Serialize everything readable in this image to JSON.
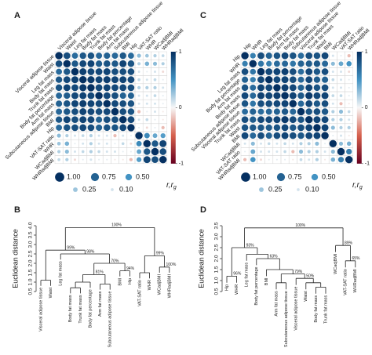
{
  "chart_data": [
    {
      "type": "corrplot",
      "panel": "A",
      "labels": [
        "Visceral adipose tissue",
        "Waist",
        "Leg fat mass",
        "Body fat mass",
        "Trunk fat mass",
        "Body fat percentage",
        "Arm fat mass",
        "Subcutaneous adipose tissue",
        "BMI",
        "Hip",
        "VAT-SAT ratio",
        "WHR",
        "WCadjBMI",
        "WHRadjBMI"
      ],
      "label_colors": [
        "#1a1a1a",
        "#1a1a1a",
        "#1a1a1a",
        "#1a1a1a",
        "#1a1a1a",
        "#1a1a1a",
        "#1a1a1a",
        "#1a1a1a",
        "#1a1a1a",
        "#1a1a1a",
        "#3a9a3a",
        "#3a9a3a",
        "#3a9a3a",
        "#3a9a3a"
      ],
      "matrix": [
        [
          1,
          0.85,
          0.7,
          0.8,
          0.82,
          0.72,
          0.75,
          0.72,
          0.8,
          0.7,
          0.3,
          0.25,
          0.2,
          0.15
        ],
        [
          0.85,
          1,
          0.8,
          0.88,
          0.9,
          0.78,
          0.82,
          0.8,
          0.9,
          0.82,
          0.2,
          0.35,
          0.3,
          0.2
        ],
        [
          0.7,
          0.8,
          1,
          0.92,
          0.88,
          0.88,
          0.9,
          0.85,
          0.85,
          0.85,
          0.1,
          0.05,
          0.1,
          -0.1
        ],
        [
          0.8,
          0.88,
          0.92,
          1,
          0.95,
          0.9,
          0.93,
          0.9,
          0.9,
          0.88,
          0.15,
          0.1,
          0.15,
          0.05
        ],
        [
          0.82,
          0.9,
          0.88,
          0.95,
          1,
          0.88,
          0.9,
          0.88,
          0.88,
          0.85,
          0.2,
          0.2,
          0.2,
          0.1
        ],
        [
          0.72,
          0.78,
          0.88,
          0.9,
          0.88,
          1,
          0.88,
          0.85,
          0.75,
          0.75,
          0.1,
          0.1,
          0.15,
          0.05
        ],
        [
          0.75,
          0.82,
          0.9,
          0.93,
          0.9,
          0.88,
          1,
          0.88,
          0.85,
          0.82,
          0.1,
          0.1,
          0.1,
          0.05
        ],
        [
          0.72,
          0.8,
          0.85,
          0.9,
          0.88,
          0.85,
          0.88,
          1,
          0.85,
          0.82,
          -0.2,
          0.05,
          0.1,
          -0.05
        ],
        [
          0.8,
          0.9,
          0.85,
          0.9,
          0.88,
          0.75,
          0.85,
          0.85,
          1,
          0.88,
          0.1,
          0.15,
          0.05,
          -0.05
        ],
        [
          0.7,
          0.82,
          0.85,
          0.88,
          0.85,
          0.75,
          0.82,
          0.82,
          0.88,
          1,
          0.05,
          -0.1,
          0.05,
          -0.2
        ],
        [
          0.3,
          0.2,
          0.1,
          0.15,
          0.2,
          0.1,
          0.1,
          -0.2,
          0.1,
          0.05,
          1,
          0.55,
          0.4,
          0.45
        ],
        [
          0.25,
          0.35,
          0.05,
          0.1,
          0.2,
          0.1,
          0.1,
          0.05,
          0.15,
          -0.1,
          0.55,
          1,
          0.8,
          0.9
        ],
        [
          0.2,
          0.3,
          0.1,
          0.15,
          0.2,
          0.15,
          0.1,
          0.1,
          0.05,
          0.05,
          0.4,
          0.8,
          1,
          0.85
        ],
        [
          0.15,
          0.2,
          -0.1,
          0.05,
          0.1,
          0.05,
          0.05,
          -0.05,
          -0.05,
          -0.2,
          0.45,
          0.9,
          0.85,
          1
        ]
      ],
      "clim": [
        -1,
        1
      ],
      "colorbar_ticks": [
        1,
        0,
        -1
      ],
      "size_legend": [
        {
          "value": 1,
          "label": "1.00"
        },
        {
          "value": 0.75,
          "label": "0.75"
        },
        {
          "value": 0.5,
          "label": "0.50"
        },
        {
          "value": 0.25,
          "label": "0.25"
        },
        {
          "value": 0.1,
          "label": "0.10"
        }
      ],
      "legend_title": {
        "r": "r,",
        "rg": "r",
        "sub": "g"
      }
    },
    {
      "type": "dendrogram",
      "panel": "B",
      "ylabel": "Euclidean distance",
      "ylim": [
        0.5,
        4
      ],
      "yticks": [
        0.5,
        {
          "value": 1,
          "label": "1.0"
        },
        1.5,
        {
          "value": 2,
          "label": "2.0"
        },
        2.5,
        {
          "value": 3,
          "label": "3.0"
        },
        3.5,
        {
          "value": 4,
          "label": "4.0"
        }
      ],
      "tree": {
        "height": 3.9,
        "support": "100%",
        "children": [
          {
            "height": 2.7,
            "support": "99%",
            "children": [
              {
                "height": 1.1,
                "children": [
                  {
                    "label": "Visceral adipose tissue",
                    "color": "#1a1a1a"
                  },
                  {
                    "label": "Waist",
                    "color": "#1a1a1a"
                  }
                ]
              },
              {
                "height": 2.5,
                "support": "98%",
                "children": [
                  {
                    "label": "Leg fat mass",
                    "color": "#1a1a1a"
                  },
                  {
                    "height": 2.0,
                    "support": "70%",
                    "children": [
                      {
                        "height": 1.4,
                        "support": "81%",
                        "children": [
                          {
                            "height": 1.0,
                            "children": [
                              {
                                "height": 0.7,
                                "children": [
                                  {
                                    "label": "Body fat mass",
                                    "color": "#1a1a1a"
                                  },
                                  {
                                    "label": "Trunk fat mass",
                                    "color": "#1a1a1a"
                                  }
                                ]
                              },
                              {
                                "label": "Body fat percentage",
                                "color": "#1a1a1a"
                              }
                            ]
                          },
                          {
                            "height": 0.9,
                            "children": [
                              {
                                "label": "Arm fat mass",
                                "color": "#1a1a1a"
                              },
                              {
                                "label": "Subcutaneous adipose tissue",
                                "color": "#1a1a1a"
                              }
                            ]
                          }
                        ]
                      },
                      {
                        "height": 1.6,
                        "support": "94%",
                        "children": [
                          {
                            "label": "BMI",
                            "color": "#1a1a1a"
                          },
                          {
                            "label": "Hip",
                            "color": "#1a1a1a"
                          }
                        ]
                      }
                    ]
                  }
                ]
              }
            ]
          },
          {
            "height": 2.4,
            "support": "99%",
            "children": [
              {
                "height": 1.5,
                "children": [
                  {
                    "label": "VAT-SAT ratio",
                    "color": "#3a9a3a"
                  },
                  {
                    "label": "WHR",
                    "color": "#3a9a3a"
                  }
                ]
              },
              {
                "height": 1.8,
                "support": "100%",
                "children": [
                  {
                    "label": "WCadjBMI",
                    "color": "#3a9a3a"
                  },
                  {
                    "label": "WHRadjBMI",
                    "color": "#3a9a3a"
                  }
                ]
              }
            ]
          }
        ]
      }
    },
    {
      "type": "corrplot",
      "panel": "C",
      "labels": [
        "Hip",
        "WHR",
        "Leg fat mass",
        "Body fat percentage",
        "Arm fat mass",
        "Body fat mass",
        "Subcutaneous adipose tissue",
        "Visceral adipose tissue",
        "Trunk fat mass",
        "Waist",
        "BMI",
        "WCadjBMI",
        "VAT-SAT ratio",
        "WHRadjBMI"
      ],
      "label_colors": [
        "#1a1a1a",
        "#1a1a1a",
        "#1a1a1a",
        "#1a1a1a",
        "#1a1a1a",
        "#1a1a1a",
        "#1a1a1a",
        "#1a1a1a",
        "#1a1a1a",
        "#1a1a1a",
        "#1a1a1a",
        "#3a9a3a",
        "#3a9a3a",
        "#3a9a3a"
      ],
      "matrix": [
        [
          1,
          0.6,
          0.85,
          0.75,
          0.82,
          0.88,
          0.82,
          0.7,
          0.85,
          0.82,
          0.88,
          0.1,
          0.05,
          -0.2
        ],
        [
          0.6,
          1,
          0.65,
          0.6,
          0.7,
          0.72,
          0.65,
          0.75,
          0.78,
          0.8,
          0.72,
          0.3,
          0.4,
          0.5
        ],
        [
          0.85,
          0.65,
          1,
          0.88,
          0.9,
          0.92,
          0.85,
          0.7,
          0.88,
          0.8,
          0.85,
          0.1,
          0.1,
          -0.1
        ],
        [
          0.75,
          0.6,
          0.88,
          1,
          0.88,
          0.9,
          0.85,
          0.72,
          0.88,
          0.78,
          0.75,
          0.15,
          0.1,
          0.05
        ],
        [
          0.82,
          0.7,
          0.9,
          0.88,
          1,
          0.93,
          0.88,
          0.75,
          0.9,
          0.82,
          0.85,
          0.1,
          0.1,
          0.05
        ],
        [
          0.88,
          0.72,
          0.92,
          0.9,
          0.93,
          1,
          0.9,
          0.8,
          0.95,
          0.88,
          0.9,
          0.15,
          0.15,
          0.05
        ],
        [
          0.82,
          0.65,
          0.85,
          0.85,
          0.88,
          0.9,
          1,
          0.72,
          0.88,
          0.8,
          0.85,
          0.1,
          -0.2,
          -0.05
        ],
        [
          0.7,
          0.75,
          0.7,
          0.72,
          0.75,
          0.8,
          0.72,
          1,
          0.82,
          0.85,
          0.8,
          0.2,
          0.3,
          0.15
        ],
        [
          0.85,
          0.78,
          0.88,
          0.88,
          0.9,
          0.95,
          0.88,
          0.82,
          1,
          0.9,
          0.88,
          0.2,
          0.2,
          0.1
        ],
        [
          0.82,
          0.8,
          0.8,
          0.78,
          0.82,
          0.88,
          0.8,
          0.85,
          0.9,
          1,
          0.9,
          0.3,
          0.2,
          0.2
        ],
        [
          0.88,
          0.72,
          0.85,
          0.75,
          0.85,
          0.9,
          0.85,
          0.8,
          0.88,
          0.9,
          1,
          0.05,
          0.1,
          -0.05
        ],
        [
          0.1,
          0.3,
          0.1,
          0.15,
          0.1,
          0.15,
          0.1,
          0.2,
          0.2,
          0.3,
          0.05,
          1,
          0.3,
          0.35
        ],
        [
          0.05,
          0.4,
          0.1,
          0.1,
          0.1,
          0.15,
          -0.2,
          0.3,
          0.2,
          0.2,
          0.1,
          0.3,
          1,
          0.6
        ],
        [
          -0.2,
          0.5,
          -0.1,
          0.05,
          0.05,
          0.05,
          -0.05,
          0.15,
          0.1,
          0.2,
          -0.05,
          0.35,
          0.6,
          1
        ]
      ],
      "clim": [
        -1,
        1
      ],
      "colorbar_ticks": [
        1,
        0,
        -1
      ],
      "size_legend": [
        {
          "value": 1,
          "label": "1.00"
        },
        {
          "value": 0.75,
          "label": "0.75"
        },
        {
          "value": 0.5,
          "label": "0.50"
        },
        {
          "value": 0.25,
          "label": "0.25"
        },
        {
          "value": 0.1,
          "label": "0.10"
        }
      ],
      "legend_title": {
        "r": "r,",
        "rg": "r",
        "sub": "g"
      }
    },
    {
      "type": "dendrogram",
      "panel": "D",
      "ylabel": "Euclidean distance",
      "ylim": [
        0.5,
        3.5
      ],
      "yticks": [
        0.5,
        {
          "value": 1,
          "label": "1.0"
        },
        1.5,
        {
          "value": 2,
          "label": "2.0"
        },
        2.5,
        {
          "value": 3,
          "label": "3.0"
        },
        3.5
      ],
      "tree": {
        "height": 3.4,
        "support": "100%",
        "children": [
          {
            "height": 2.5,
            "support": "93%",
            "children": [
              {
                "height": 1.2,
                "support": "96%",
                "children": [
                  {
                    "label": "Hip",
                    "color": "#1a1a1a"
                  },
                  {
                    "label": "WHR",
                    "color": "#1a1a1a"
                  }
                ]
              },
              {
                "height": 2.2,
                "children": [
                  {
                    "label": "Leg fat mass",
                    "color": "#1a1a1a"
                  },
                  {
                    "height": 2.0,
                    "support": "63%",
                    "children": [
                      {
                        "label": "Body fat percentage",
                        "color": "#1a1a1a"
                      },
                      {
                        "height": 1.5,
                        "children": [
                          {
                            "label": "BMI",
                            "color": "#1a1a1a"
                          },
                          {
                            "height": 1.3,
                            "support": "79%",
                            "children": [
                              {
                                "height": 0.9,
                                "children": [
                                  {
                                    "label": "Arm fat mass",
                                    "color": "#1a1a1a"
                                  },
                                  {
                                    "label": "Subcutaneous adipose tissue",
                                    "color": "#1a1a1a"
                                  }
                                ]
                              },
                              {
                                "height": 1.1,
                                "support": "50%",
                                "children": [
                                  {
                                    "label": "Visceral adipose tissue",
                                    "color": "#1a1a1a"
                                  },
                                  {
                                    "height": 0.9,
                                    "children": [
                                      {
                                        "label": "Waist",
                                        "color": "#1a1a1a"
                                      },
                                      {
                                        "height": 0.7,
                                        "children": [
                                          {
                                            "label": "Body fat mass",
                                            "color": "#1a1a1a"
                                          },
                                          {
                                            "label": "Trunk fat mass",
                                            "color": "#1a1a1a"
                                          }
                                        ]
                                      }
                                    ]
                                  }
                                ]
                              }
                            ]
                          }
                        ]
                      }
                    ]
                  }
                ]
              }
            ]
          },
          {
            "height": 2.6,
            "support": "89%",
            "children": [
              {
                "label": "WCadjBMI",
                "color": "#3a9a3a"
              },
              {
                "height": 1.9,
                "support": "65%",
                "children": [
                  {
                    "label": "VAT-SAT ratio",
                    "color": "#3a9a3a"
                  },
                  {
                    "label": "WHRadjBMI",
                    "color": "#3a9a3a"
                  }
                ]
              }
            ]
          }
        ]
      }
    }
  ]
}
